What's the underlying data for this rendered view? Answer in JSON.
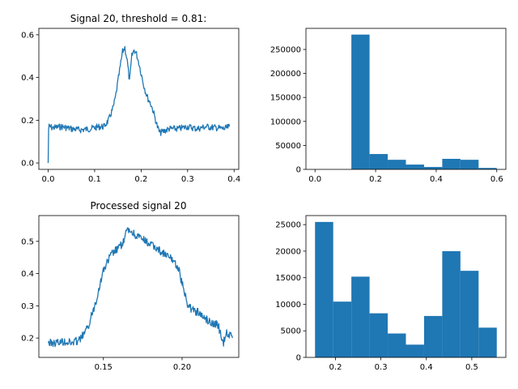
{
  "chart_data": [
    {
      "type": "line",
      "title": "Signal 20, threshold =  0.81:",
      "color": "#1f77b4",
      "xlim": [
        -0.02,
        0.41
      ],
      "ylim": [
        -0.03,
        0.63
      ],
      "xticks": [
        0.0,
        0.1,
        0.2,
        0.3,
        0.4
      ],
      "xtick_labels": [
        "0.0",
        "0.1",
        "0.2",
        "0.3",
        "0.4"
      ],
      "yticks": [
        0.0,
        0.2,
        0.4,
        0.6
      ],
      "ytick_labels": [
        "0.0",
        "0.2",
        "0.4",
        "0.6"
      ],
      "x": [
        0.0,
        0.001,
        0.002,
        0.01,
        0.03,
        0.05,
        0.07,
        0.09,
        0.1,
        0.11,
        0.12,
        0.13,
        0.14,
        0.145,
        0.15,
        0.155,
        0.16,
        0.165,
        0.17,
        0.175,
        0.18,
        0.185,
        0.19,
        0.195,
        0.2,
        0.205,
        0.21,
        0.215,
        0.22,
        0.225,
        0.23,
        0.235,
        0.24,
        0.25,
        0.26,
        0.28,
        0.3,
        0.32,
        0.34,
        0.36,
        0.38,
        0.39
      ],
      "y": [
        0.0,
        0.16,
        0.17,
        0.165,
        0.17,
        0.16,
        0.155,
        0.16,
        0.165,
        0.17,
        0.17,
        0.2,
        0.26,
        0.31,
        0.38,
        0.45,
        0.52,
        0.54,
        0.48,
        0.38,
        0.5,
        0.53,
        0.51,
        0.47,
        0.42,
        0.37,
        0.33,
        0.3,
        0.28,
        0.25,
        0.21,
        0.17,
        0.14,
        0.15,
        0.16,
        0.16,
        0.17,
        0.16,
        0.17,
        0.165,
        0.16,
        0.17
      ]
    },
    {
      "type": "bar",
      "color": "#1f77b4",
      "xlim": [
        -0.03,
        0.63
      ],
      "ylim": [
        0,
        294000
      ],
      "xticks": [
        0.0,
        0.2,
        0.4,
        0.6
      ],
      "xtick_labels": [
        "0.0",
        "0.2",
        "0.4",
        "0.6"
      ],
      "yticks": [
        0,
        50000,
        100000,
        150000,
        200000,
        250000
      ],
      "ytick_labels": [
        "0",
        "50000",
        "100000",
        "150000",
        "200000",
        "250000"
      ],
      "bin_edges": [
        0.0,
        0.06,
        0.12,
        0.18,
        0.24,
        0.3,
        0.36,
        0.42,
        0.48,
        0.54,
        0.6
      ],
      "values": [
        0,
        0,
        281000,
        32000,
        20000,
        10000,
        5000,
        22000,
        20000,
        3000
      ]
    },
    {
      "type": "line",
      "title": "Processed signal 20",
      "color": "#1f77b4",
      "xlim": [
        0.109,
        0.236
      ],
      "ylim": [
        0.14,
        0.58
      ],
      "xticks": [
        0.15,
        0.2
      ],
      "xtick_labels": [
        "0.15",
        "0.20"
      ],
      "yticks": [
        0.2,
        0.3,
        0.4,
        0.5
      ],
      "ytick_labels": [
        "0.2",
        "0.3",
        "0.4",
        "0.5"
      ],
      "x": [
        0.115,
        0.12,
        0.125,
        0.13,
        0.135,
        0.14,
        0.145,
        0.15,
        0.155,
        0.16,
        0.163,
        0.165,
        0.168,
        0.17,
        0.175,
        0.18,
        0.185,
        0.19,
        0.195,
        0.198,
        0.2,
        0.203,
        0.206,
        0.21,
        0.215,
        0.22,
        0.223,
        0.226,
        0.228,
        0.232
      ],
      "y": [
        0.185,
        0.185,
        0.19,
        0.185,
        0.195,
        0.23,
        0.31,
        0.41,
        0.46,
        0.48,
        0.5,
        0.535,
        0.53,
        0.52,
        0.505,
        0.49,
        0.475,
        0.455,
        0.44,
        0.41,
        0.37,
        0.31,
        0.29,
        0.28,
        0.26,
        0.245,
        0.24,
        0.18,
        0.22,
        0.2
      ]
    },
    {
      "type": "bar",
      "color": "#1f77b4",
      "xlim": [
        0.135,
        0.575
      ],
      "ylim": [
        0,
        26700
      ],
      "xticks": [
        0.2,
        0.3,
        0.4,
        0.5
      ],
      "xtick_labels": [
        "0.2",
        "0.3",
        "0.4",
        "0.5"
      ],
      "yticks": [
        0,
        5000,
        10000,
        15000,
        20000,
        25000
      ],
      "ytick_labels": [
        "0",
        "5000",
        "10000",
        "15000",
        "20000",
        "25000"
      ],
      "bin_edges": [
        0.155,
        0.195,
        0.235,
        0.275,
        0.315,
        0.355,
        0.395,
        0.435,
        0.475,
        0.515,
        0.555
      ],
      "values": [
        25500,
        10500,
        15200,
        8300,
        4500,
        2400,
        7800,
        20000,
        16300,
        5600
      ]
    }
  ]
}
